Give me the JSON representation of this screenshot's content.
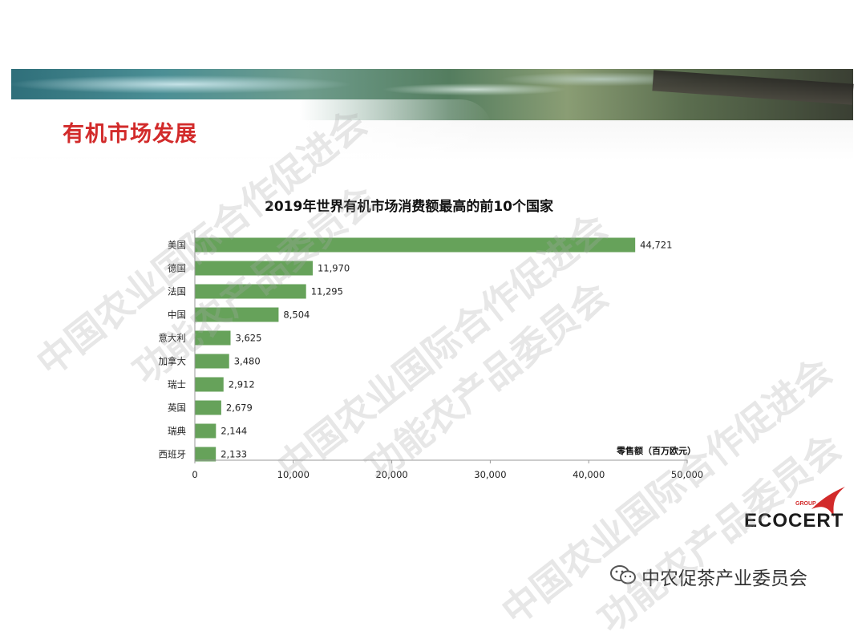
{
  "section_title": "有机市场发展",
  "watermark_lines": [
    "中国农业国际合作促进会",
    "功能农产品委员会"
  ],
  "footer": {
    "account_name": "中农促茶产业委员会"
  },
  "logo": {
    "group": "GROUP",
    "name": "ECOCERT"
  },
  "colors": {
    "bar": "#66a25a",
    "title_red": "#d22a2a",
    "axis": "#999999"
  },
  "chart_data": {
    "type": "bar",
    "orientation": "horizontal",
    "title": "2019年世界有机市场消费额最高的前10个国家",
    "unit_label": "零售额（百万欧元）",
    "categories": [
      "美国",
      "德国",
      "法国",
      "中国",
      "意大利",
      "加拿大",
      "瑞士",
      "英国",
      "瑞典",
      "西班牙"
    ],
    "values": [
      44721,
      11970,
      11295,
      8504,
      3625,
      3480,
      2912,
      2679,
      2144,
      2133
    ],
    "value_labels": [
      "44,721",
      "11,970",
      "11,295",
      "8,504",
      "3,625",
      "3,480",
      "2,912",
      "2,679",
      "2,144",
      "2,133"
    ],
    "x_ticks": [
      "0",
      "10,000",
      "20,000",
      "30,000",
      "40,000",
      "50,000"
    ],
    "xlim": [
      0,
      50000
    ],
    "grid": false,
    "legend": "none"
  }
}
